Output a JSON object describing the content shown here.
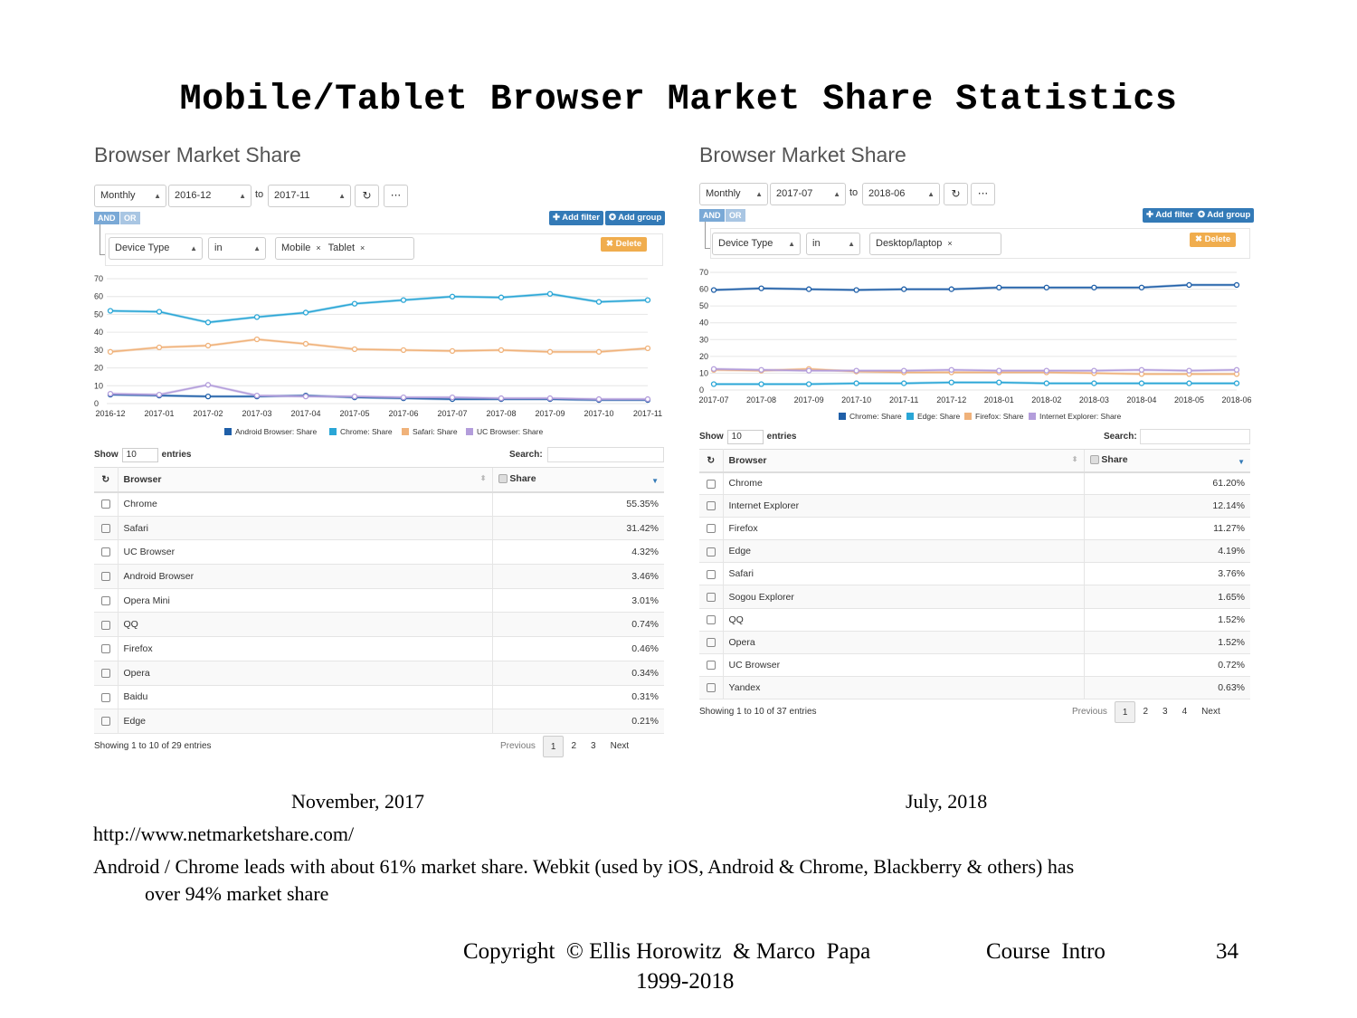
{
  "slide": {
    "title": "Mobile/Tablet Browser Market Share Statistics",
    "caption_left": "November, 2017",
    "caption_right": "July, 2018",
    "url": "http://www.netmarketshare.com/",
    "note_line1": "Android / Chrome leads with about 61% market share. Webkit (used by iOS, Android & Chrome, Blackberry  & others) has",
    "note_line2": "over 94% market share",
    "copyright": "Copyright  © Ellis Horowitz  & Marco  Papa",
    "years": "1999-2018",
    "course": "Course  Intro",
    "page": "34"
  },
  "left": {
    "title": "Browser Market Share",
    "period": "Monthly",
    "from": "2016-12",
    "to_label": "to",
    "to": "2017-11",
    "refresh_icon": "refresh-icon",
    "more_label": "···",
    "and_label": "AND",
    "or_label": "OR",
    "add_filter": "✚ Add filter",
    "add_group": "✪ Add group",
    "delete": "✖ Delete",
    "filter_field": "Device Type",
    "filter_op": "in",
    "tags": [
      "Mobile",
      "Tablet"
    ],
    "show_label": "Show",
    "entries_value": "10",
    "entries_label": "entries",
    "search_label": "Search:",
    "col_browser": "Browser",
    "col_share": "Share",
    "rows": [
      {
        "browser": "Chrome",
        "share": "55.35%"
      },
      {
        "browser": "Safari",
        "share": "31.42%"
      },
      {
        "browser": "UC Browser",
        "share": "4.32%"
      },
      {
        "browser": "Android Browser",
        "share": "3.46%"
      },
      {
        "browser": "Opera Mini",
        "share": "3.01%"
      },
      {
        "browser": "QQ",
        "share": "0.74%"
      },
      {
        "browser": "Firefox",
        "share": "0.46%"
      },
      {
        "browser": "Opera",
        "share": "0.34%"
      },
      {
        "browser": "Baidu",
        "share": "0.31%"
      },
      {
        "browser": "Edge",
        "share": "0.21%"
      }
    ],
    "info": "Showing 1 to 10 of 29 entries",
    "pager": [
      "Previous",
      "1",
      "2",
      "3",
      "Next"
    ],
    "chart_data": {
      "type": "line",
      "x": [
        "2016-12",
        "2017-01",
        "2017-02",
        "2017-03",
        "2017-04",
        "2017-05",
        "2017-06",
        "2017-07",
        "2017-08",
        "2017-09",
        "2017-10",
        "2017-11"
      ],
      "ylim": [
        0,
        70
      ],
      "yticks": [
        0,
        10,
        20,
        30,
        40,
        50,
        60,
        70
      ],
      "grid": true,
      "legend_position": "bottom",
      "series": [
        {
          "name": "Android Browser: Share",
          "color": "#1f5fa8",
          "values": [
            5,
            4.5,
            4,
            4,
            4.5,
            3.5,
            3,
            2.5,
            2.5,
            2.5,
            2,
            2
          ]
        },
        {
          "name": "Chrome: Share",
          "color": "#2aa6d6",
          "values": [
            52,
            51.5,
            45.5,
            48.5,
            51,
            56,
            58,
            60,
            59.5,
            61.5,
            57,
            58
          ]
        },
        {
          "name": "Safari: Share",
          "color": "#f0b27a",
          "values": [
            29,
            31.5,
            32.5,
            36,
            33.5,
            30.5,
            30,
            29.5,
            30,
            29,
            29,
            31
          ]
        },
        {
          "name": "UC Browser: Share",
          "color": "#b39ddb",
          "values": [
            5.5,
            5,
            10.5,
            4.5,
            4,
            4,
            3.5,
            3.5,
            3,
            3,
            2.5,
            2.5
          ]
        }
      ]
    }
  },
  "right": {
    "title": "Browser Market Share",
    "period": "Monthly",
    "from": "2017-07",
    "to_label": "to",
    "to": "2018-06",
    "refresh_icon": "refresh-icon",
    "more_label": "···",
    "and_label": "AND",
    "or_label": "OR",
    "add_filter": "✚ Add filter",
    "add_group": "✪ Add group",
    "delete": "✖ Delete",
    "filter_field": "Device Type",
    "filter_op": "in",
    "tags": [
      "Desktop/laptop"
    ],
    "show_label": "Show",
    "entries_value": "10",
    "entries_label": "entries",
    "search_label": "Search:",
    "col_browser": "Browser",
    "col_share": "Share",
    "rows": [
      {
        "browser": "Chrome",
        "share": "61.20%"
      },
      {
        "browser": "Internet Explorer",
        "share": "12.14%"
      },
      {
        "browser": "Firefox",
        "share": "11.27%"
      },
      {
        "browser": "Edge",
        "share": "4.19%"
      },
      {
        "browser": "Safari",
        "share": "3.76%"
      },
      {
        "browser": "Sogou Explorer",
        "share": "1.65%"
      },
      {
        "browser": "QQ",
        "share": "1.52%"
      },
      {
        "browser": "Opera",
        "share": "1.52%"
      },
      {
        "browser": "UC Browser",
        "share": "0.72%"
      },
      {
        "browser": "Yandex",
        "share": "0.63%"
      }
    ],
    "info": "Showing 1 to 10 of 37 entries",
    "pager": [
      "Previous",
      "1",
      "2",
      "3",
      "4",
      "Next"
    ],
    "chart_data": {
      "type": "line",
      "x": [
        "2017-07",
        "2017-08",
        "2017-09",
        "2017-10",
        "2017-11",
        "2017-12",
        "2018-01",
        "2018-02",
        "2018-03",
        "2018-04",
        "2018-05",
        "2018-06"
      ],
      "ylim": [
        0,
        70
      ],
      "yticks": [
        0,
        10,
        20,
        30,
        40,
        50,
        60,
        70
      ],
      "grid": true,
      "legend_position": "bottom",
      "series": [
        {
          "name": "Chrome: Share",
          "color": "#1f5fa8",
          "values": [
            59.5,
            60.5,
            60,
            59.5,
            60,
            60,
            61,
            61,
            61,
            61,
            62.5,
            62.5
          ]
        },
        {
          "name": "Edge: Share",
          "color": "#2aa6d6",
          "values": [
            3.5,
            3.5,
            3.5,
            4,
            4,
            4.5,
            4.5,
            4,
            4,
            4,
            4,
            4
          ]
        },
        {
          "name": "Firefox: Share",
          "color": "#f0b27a",
          "values": [
            12,
            11.5,
            12.5,
            11,
            10.5,
            10.5,
            10.5,
            10.5,
            10,
            9.5,
            9.5,
            9.5
          ]
        },
        {
          "name": "Internet Explorer: Share",
          "color": "#b39ddb",
          "values": [
            12.5,
            12,
            11.5,
            11.5,
            11.5,
            12,
            11.5,
            11.5,
            11.5,
            12,
            11.5,
            12
          ]
        }
      ]
    }
  }
}
